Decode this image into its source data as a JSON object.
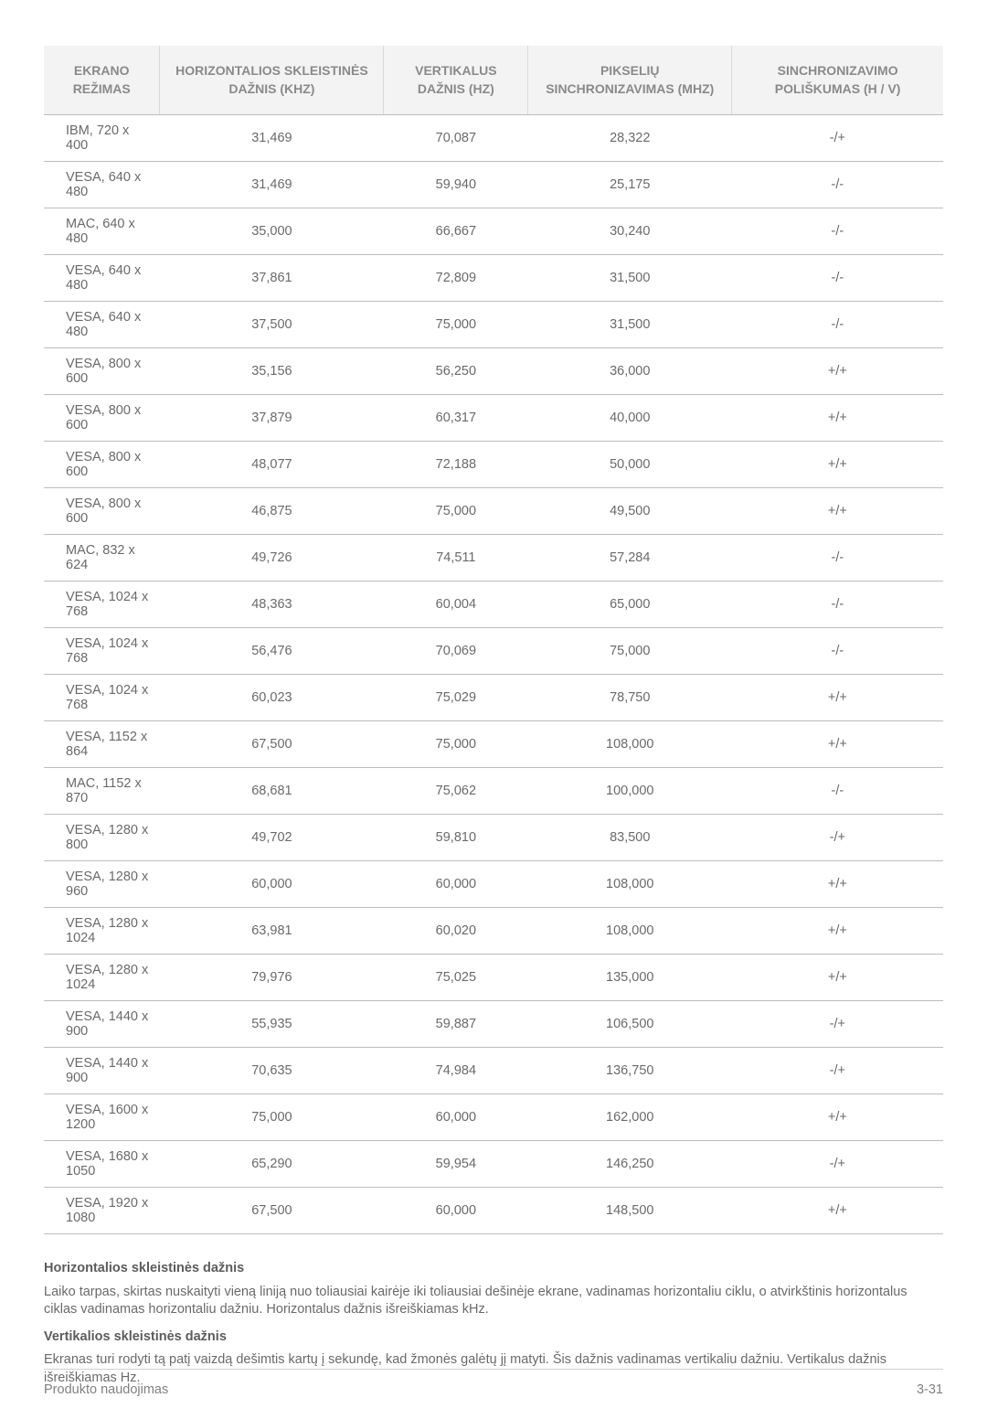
{
  "table": {
    "columns": [
      "EKRANO REŽIMAS",
      "HORIZONTALIOS SKLEISTINĖS DAŽNIS (KHZ)",
      "VERTIKALUS DAŽNIS (HZ)",
      "PIKSELIŲ SINCHRONIZAVIMAS (MHZ)",
      "SINCHRONIZAVIMO POLIŠKUMAS (H / V)"
    ],
    "rows": [
      [
        "IBM, 720 x 400",
        "31,469",
        "70,087",
        "28,322",
        "-/+"
      ],
      [
        "VESA, 640 x 480",
        "31,469",
        "59,940",
        "25,175",
        "-/-"
      ],
      [
        "MAC, 640 x 480",
        "35,000",
        "66,667",
        "30,240",
        "-/-"
      ],
      [
        "VESA, 640 x 480",
        "37,861",
        "72,809",
        "31,500",
        "-/-"
      ],
      [
        "VESA, 640 x 480",
        "37,500",
        "75,000",
        "31,500",
        "-/-"
      ],
      [
        "VESA, 800 x 600",
        "35,156",
        "56,250",
        "36,000",
        "+/+"
      ],
      [
        "VESA, 800 x 600",
        "37,879",
        "60,317",
        "40,000",
        "+/+"
      ],
      [
        "VESA, 800 x 600",
        "48,077",
        "72,188",
        "50,000",
        "+/+"
      ],
      [
        "VESA, 800 x 600",
        "46,875",
        "75,000",
        "49,500",
        "+/+"
      ],
      [
        "MAC, 832 x 624",
        "49,726",
        "74,511",
        "57,284",
        "-/-"
      ],
      [
        "VESA, 1024 x 768",
        "48,363",
        "60,004",
        "65,000",
        "-/-"
      ],
      [
        "VESA, 1024 x 768",
        "56,476",
        "70,069",
        "75,000",
        "-/-"
      ],
      [
        "VESA, 1024 x 768",
        "60,023",
        "75,029",
        "78,750",
        "+/+"
      ],
      [
        "VESA, 1152 x 864",
        "67,500",
        "75,000",
        "108,000",
        "+/+"
      ],
      [
        "MAC, 1152 x 870",
        "68,681",
        "75,062",
        "100,000",
        "-/-"
      ],
      [
        "VESA, 1280 x 800",
        "49,702",
        "59,810",
        "83,500",
        "-/+"
      ],
      [
        "VESA, 1280 x 960",
        "60,000",
        "60,000",
        "108,000",
        "+/+"
      ],
      [
        "VESA, 1280 x 1024",
        "63,981",
        "60,020",
        "108,000",
        "+/+"
      ],
      [
        "VESA, 1280 x 1024",
        "79,976",
        "75,025",
        "135,000",
        "+/+"
      ],
      [
        "VESA, 1440 x 900",
        "55,935",
        "59,887",
        "106,500",
        "-/+"
      ],
      [
        "VESA, 1440 x 900",
        "70,635",
        "74,984",
        "136,750",
        "-/+"
      ],
      [
        "VESA, 1600 x 1200",
        "75,000",
        "60,000",
        "162,000",
        "+/+"
      ],
      [
        "VESA, 1680 x 1050",
        "65,290",
        "59,954",
        "146,250",
        "-/+"
      ],
      [
        "VESA, 1920 x 1080",
        "67,500",
        "60,000",
        "148,500",
        "+/+"
      ]
    ],
    "header_bg": "#f3f3f3",
    "header_color": "#8a8a8a",
    "cell_color": "#6a6a6a",
    "border_color": "#bdbdbd"
  },
  "section1": {
    "heading": "Horizontalios skleistinės dažnis",
    "body": "Laiko tarpas, skirtas nuskaityti vieną liniją nuo toliausiai kairėje iki toliausiai dešinėje ekrane, vadinamas horizontaliu ciklu, o atvirkštinis horizontalus ciklas vadinamas horizontaliu dažniu. Horizontalus dažnis išreiškiamas kHz."
  },
  "section2": {
    "heading": "Vertikalios skleistinės dažnis",
    "body": "Ekranas turi rodyti tą patį vaizdą dešimtis kartų į sekundę, kad žmonės galėtų jį matyti. Šis dažnis vadinamas vertikaliu dažniu. Vertikalus dažnis išreiškiamas Hz."
  },
  "footer": {
    "left": "Produkto naudojimas",
    "right": "3-31"
  }
}
